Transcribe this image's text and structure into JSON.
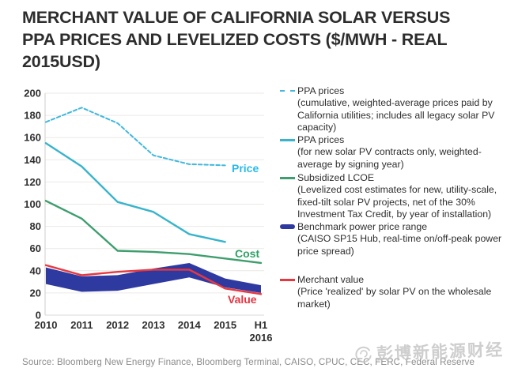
{
  "header": {
    "title_lines": [
      "MERCHANT VALUE OF CALIFORNIA SOLAR VERSUS",
      "PPA PRICES AND LEVELIZED COSTS ($/MWH - REAL",
      "2015USD)"
    ]
  },
  "chart_data": {
    "type": "line",
    "title": "Merchant value of California solar versus PPA prices and levelized costs ($/MWh - real 2015USD)",
    "categories": [
      "2010",
      "2011",
      "2012",
      "2013",
      "2014",
      "2015",
      "H1 2016"
    ],
    "ylim": [
      0,
      200
    ],
    "y_ticks": [
      0,
      20,
      40,
      60,
      80,
      100,
      120,
      140,
      160,
      180,
      200
    ],
    "grid": true,
    "legend_position": "right",
    "series": [
      {
        "name": "PPA prices (cumulative, weighted-average prices paid by California utilities; includes all legacy solar PV capacity)",
        "style": "dashed",
        "color": "#41b8dd",
        "values": [
          174,
          187,
          173,
          144,
          136,
          135,
          null
        ]
      },
      {
        "name": "PPA prices (for new solar PV contracts only, weighted-average by signing year)",
        "style": "solid",
        "color": "#38b4cb",
        "values": [
          155,
          134,
          102,
          93,
          73,
          66,
          null
        ]
      },
      {
        "name": "Subsidized LCOE (levelized cost estimates for new, utility-scale, fixed-tilt solar PV projects, net of the 30% Investment Tax Credit, by year of installation)",
        "style": "solid",
        "color": "#3d9e6e",
        "values": [
          103,
          87,
          58,
          57,
          55,
          51,
          47
        ]
      },
      {
        "name": "Merchant value (price 'realized' by solar PV on the wholesale market)",
        "style": "solid",
        "color": "#e8383f",
        "values": [
          45,
          36,
          39,
          41,
          41,
          24,
          19
        ]
      }
    ],
    "band": {
      "name": "Benchmark power price range (CAISO SP15 Hub, real-time on/off-peak power price spread)",
      "color": "#2f3aa0",
      "high": [
        43,
        35,
        36,
        42,
        47,
        33,
        27
      ],
      "low": [
        28,
        21,
        22,
        28,
        34,
        25,
        20
      ]
    },
    "annotations": [
      {
        "text": "Price",
        "color": "#29b9ea"
      },
      {
        "text": "Cost",
        "color": "#2ea065"
      },
      {
        "text": "Value",
        "color": "#e53540"
      }
    ]
  },
  "legend": {
    "items": [
      {
        "name": "PPA prices",
        "desc": "(cumulative, weighted-average prices paid by California utilities; includes all legacy solar PV capacity)"
      },
      {
        "name": "PPA prices",
        "desc": "(for new solar PV contracts only, weighted-average by signing year)"
      },
      {
        "name": "Subsidized LCOE",
        "desc": "(Levelized cost estimates for new, utility-scale, fixed-tilt solar PV projects, net of the 30% Investment Tax Credit, by year of installation)"
      },
      {
        "name": "Benchmark power price range",
        "desc": "(CAISO SP15 Hub, real-time on/off-peak power price spread)"
      },
      {
        "name": "Merchant value",
        "desc": "(Price 'realized' by solar PV on the wholesale market)"
      }
    ]
  },
  "footer": {
    "source": "Source:  Bloomberg New Energy Finance, Bloomberg Terminal, CAISO, CPUC, CEC, FERC, Federal Reserve"
  },
  "watermark": {
    "text": "彭博新能源财经"
  }
}
